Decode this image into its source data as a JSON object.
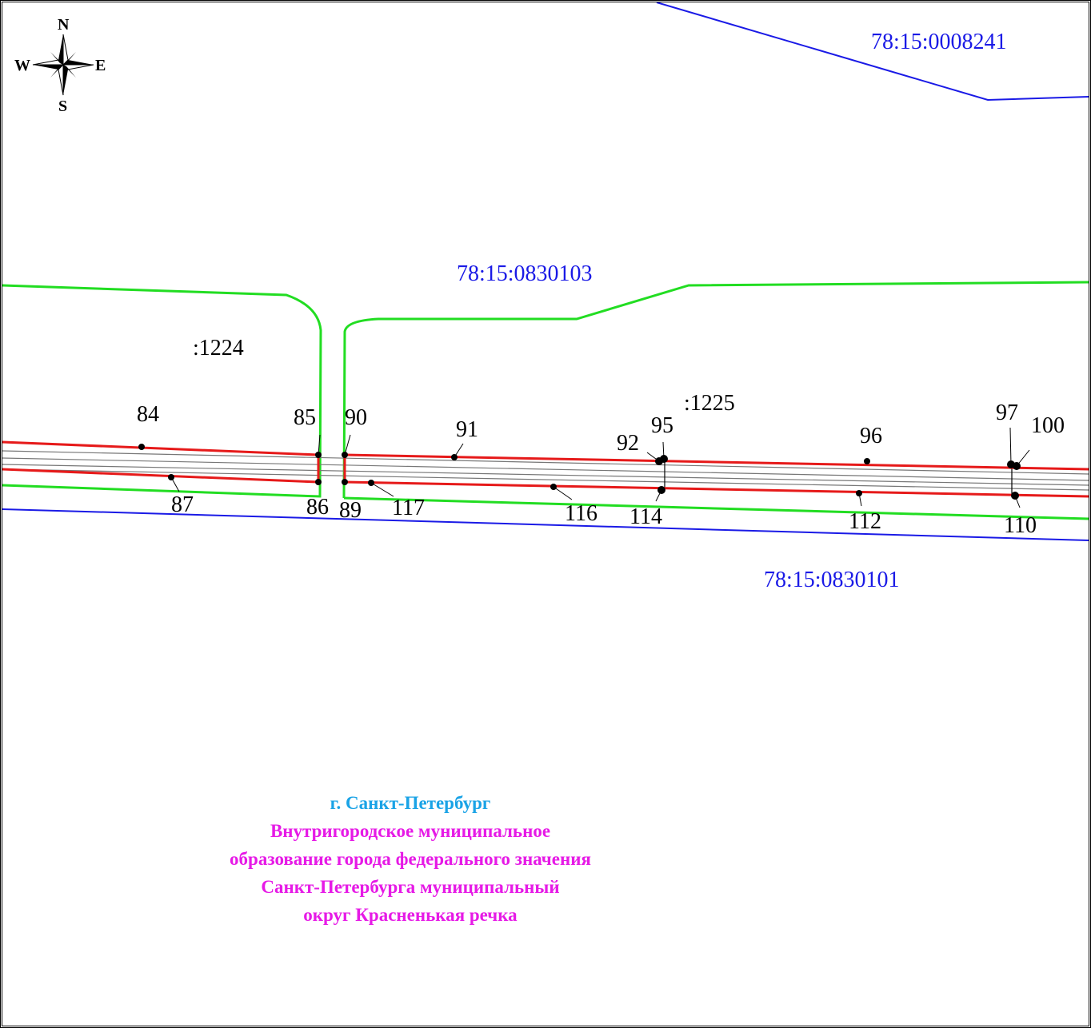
{
  "compass": {
    "north": "N",
    "south": "S",
    "east": "E",
    "west": "W"
  },
  "cadastral_labels": {
    "top_right": "78:15:0008241",
    "middle": "78:15:0830103",
    "bottom": "78:15:0830101"
  },
  "parcel_labels": {
    "left": ":1224",
    "right": ":1225"
  },
  "points": [
    "84",
    "85",
    "90",
    "91",
    "92",
    "95",
    "96",
    "97",
    "100",
    "87",
    "86",
    "89",
    "117",
    "116",
    "114",
    "112",
    "110"
  ],
  "admin": {
    "city": "г. Санкт-Петербург",
    "lines": [
      "Внутригородское муниципальное",
      "образование города федерального значения",
      "Санкт-Петербурга муниципальный",
      "округ Красненькая речка"
    ]
  },
  "colors": {
    "cadastral_boundary": "#1a1ae6",
    "parcel_boundary": "#22dd22",
    "easement_boundary": "#e61a1a",
    "city_text": "#1aa3e6",
    "admin_text": "#e61ae6"
  }
}
